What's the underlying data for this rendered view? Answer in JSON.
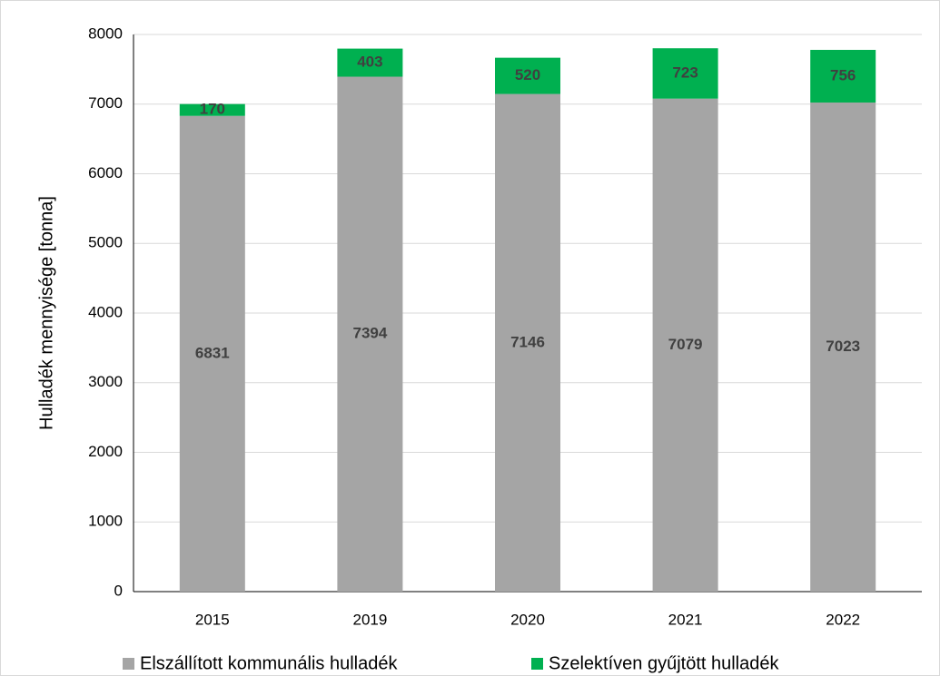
{
  "chart_data": {
    "type": "stacked_bar",
    "ylabel": "Hulladék mennyisége [tonna]",
    "categories": [
      "2015",
      "2019",
      "2020",
      "2021",
      "2022"
    ],
    "series": [
      {
        "name": "Elszállított kommunális hulladék",
        "color": "#a5a5a5",
        "values": [
          6831,
          7394,
          7146,
          7079,
          7023
        ]
      },
      {
        "name": "Szelektíven gyűjtött hulladék",
        "color": "#00b050",
        "values": [
          170,
          403,
          520,
          723,
          756
        ]
      }
    ],
    "ylim": [
      0,
      8000
    ],
    "yticks": [
      0,
      1000,
      2000,
      3000,
      4000,
      5000,
      6000,
      7000,
      8000
    ],
    "grid": true,
    "legend": "bottom"
  }
}
